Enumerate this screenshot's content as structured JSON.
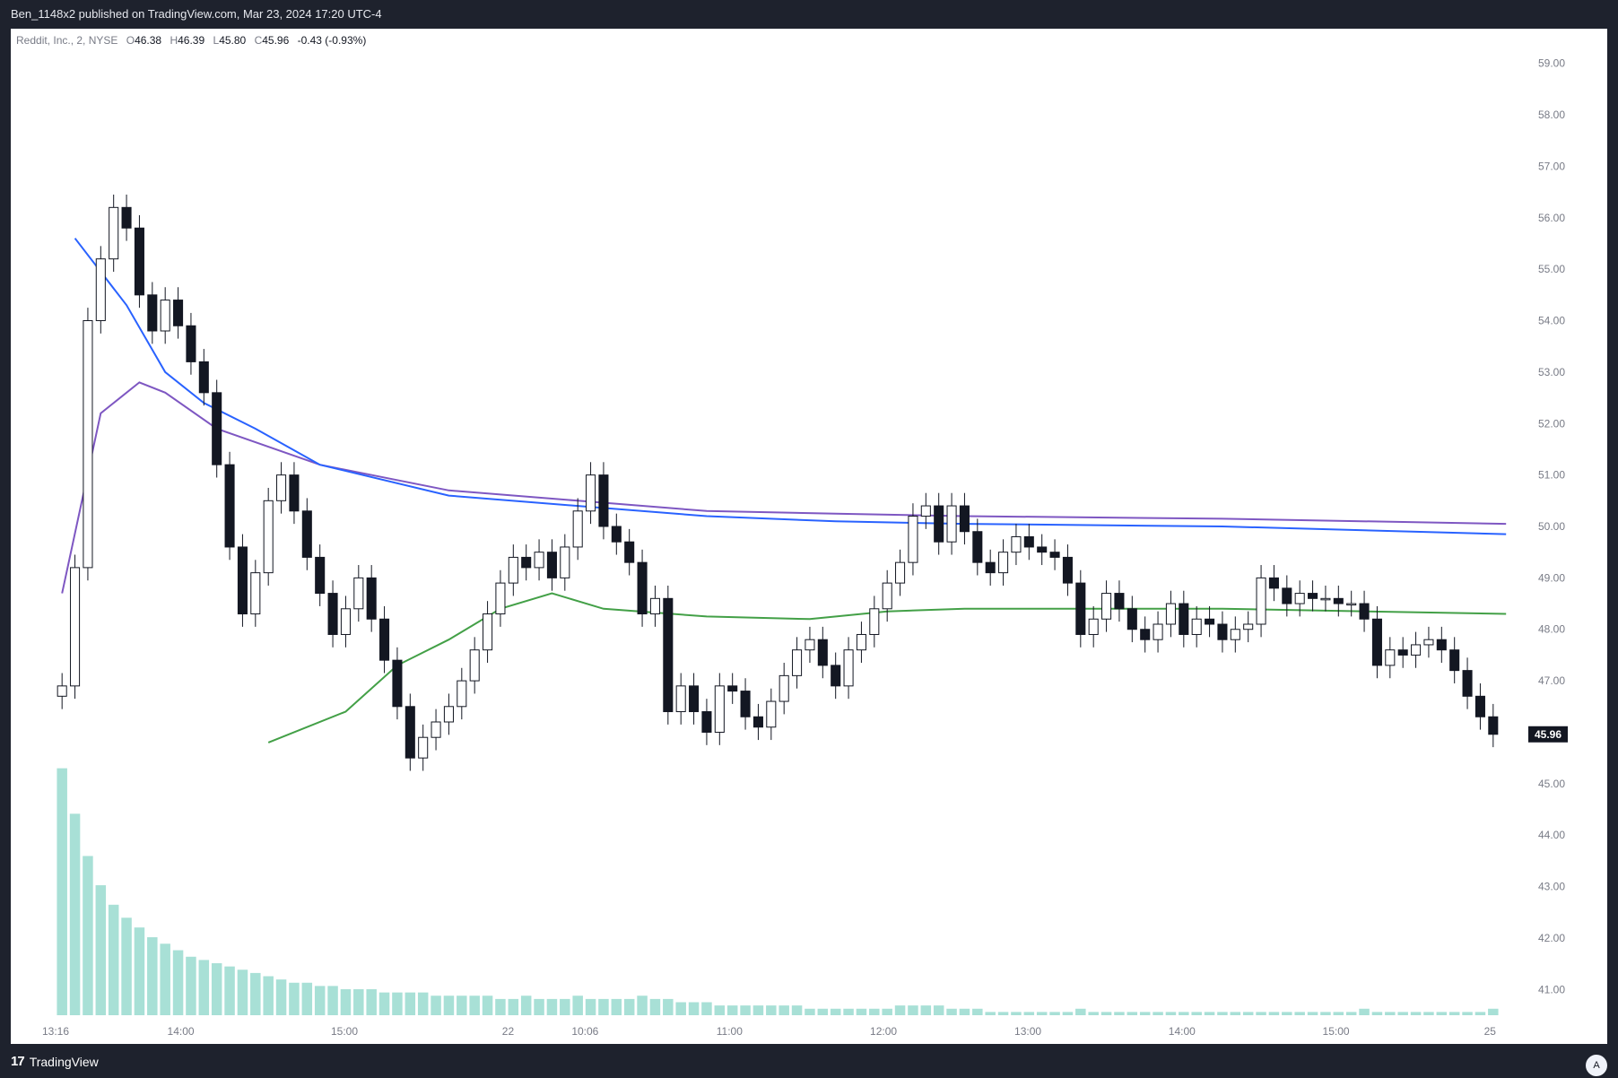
{
  "header": {
    "publish_line": "Ben_1148x2 published on TradingView.com, Mar 23, 2024 17:20 UTC-4"
  },
  "legend": {
    "symbol": "Reddit, Inc., 2, NYSE",
    "open_label": "O",
    "open": "46.38",
    "high_label": "H",
    "high": "46.39",
    "low_label": "L",
    "low": "45.80",
    "close_label": "C",
    "close": "45.96",
    "change": "-0.43 (-0.93%)"
  },
  "footer": {
    "brand": "TradingView",
    "brand_icon": "tradingview-logo-icon",
    "auto_scale_label": "A"
  },
  "colors": {
    "background": "#1e222d",
    "chart_bg": "#ffffff",
    "candle": "#131722",
    "volume": "#a8e0d6",
    "vwap_purple": "#7e57c2",
    "ma_blue": "#2962ff",
    "ma_green": "#43a047",
    "last_price_bg": "#131722"
  },
  "chart_data": {
    "type": "candlestick",
    "ylim": [
      40.5,
      59.5
    ],
    "y_ticks": [
      "59.00",
      "58.00",
      "57.00",
      "56.00",
      "55.00",
      "54.00",
      "53.00",
      "52.00",
      "51.00",
      "50.00",
      "49.00",
      "48.00",
      "47.00",
      "46.00",
      "45.00",
      "44.00",
      "43.00",
      "42.00",
      "41.00"
    ],
    "x_ticks": [
      "13:16",
      "14:00",
      "15:00",
      "22",
      "10:06",
      "11:00",
      "12:00",
      "13:00",
      "14:00",
      "15:00",
      "25"
    ],
    "last_price": "45.96",
    "price_series": [
      46.9,
      49.2,
      54.0,
      55.2,
      56.2,
      55.8,
      54.5,
      53.8,
      54.4,
      53.9,
      53.2,
      52.6,
      51.2,
      49.6,
      48.3,
      49.1,
      50.5,
      51.0,
      50.3,
      49.4,
      48.7,
      47.9,
      48.4,
      49.0,
      48.2,
      47.4,
      46.5,
      45.5,
      45.9,
      46.2,
      46.5,
      47.0,
      47.6,
      48.3,
      48.9,
      49.4,
      49.2,
      49.5,
      49.0,
      49.6,
      50.3,
      51.0,
      50.0,
      49.7,
      49.3,
      48.3,
      48.6,
      46.4,
      46.9,
      46.4,
      46.0,
      46.9,
      46.8,
      46.3,
      46.1,
      46.6,
      47.1,
      47.6,
      47.8,
      47.3,
      46.9,
      47.6,
      47.9,
      48.4,
      48.9,
      49.3,
      50.2,
      50.4,
      49.7,
      50.4,
      49.9,
      49.3,
      49.1,
      49.5,
      49.8,
      49.6,
      49.5,
      49.4,
      48.9,
      47.9,
      48.2,
      48.7,
      48.4,
      48.0,
      47.8,
      48.1,
      48.5,
      47.9,
      48.2,
      48.1,
      47.8,
      48.0,
      48.1,
      49.0,
      48.8,
      48.5,
      48.7,
      48.6,
      48.6,
      48.5,
      48.5,
      48.2,
      47.3,
      47.6,
      47.5,
      47.7,
      47.8,
      47.6,
      47.2,
      46.7,
      46.3,
      45.96
    ],
    "volume_series": [
      7.6,
      6.2,
      4.9,
      4.0,
      3.4,
      3.0,
      2.7,
      2.4,
      2.2,
      2.0,
      1.8,
      1.7,
      1.6,
      1.5,
      1.4,
      1.3,
      1.2,
      1.1,
      1.0,
      1.0,
      0.9,
      0.9,
      0.8,
      0.8,
      0.8,
      0.7,
      0.7,
      0.7,
      0.7,
      0.6,
      0.6,
      0.6,
      0.6,
      0.6,
      0.5,
      0.5,
      0.6,
      0.5,
      0.5,
      0.5,
      0.6,
      0.5,
      0.5,
      0.5,
      0.5,
      0.6,
      0.5,
      0.5,
      0.4,
      0.4,
      0.4,
      0.3,
      0.3,
      0.3,
      0.3,
      0.3,
      0.3,
      0.3,
      0.2,
      0.2,
      0.2,
      0.2,
      0.2,
      0.2,
      0.2,
      0.3,
      0.3,
      0.3,
      0.3,
      0.2,
      0.2,
      0.2,
      0.1,
      0.1,
      0.1,
      0.1,
      0.1,
      0.1,
      0.1,
      0.2,
      0.1,
      0.1,
      0.1,
      0.1,
      0.1,
      0.1,
      0.1,
      0.1,
      0.1,
      0.1,
      0.1,
      0.1,
      0.1,
      0.1,
      0.1,
      0.1,
      0.1,
      0.1,
      0.1,
      0.1,
      0.1,
      0.2,
      0.1,
      0.1,
      0.1,
      0.1,
      0.1,
      0.1,
      0.1,
      0.1,
      0.1,
      0.2
    ],
    "vwap_series": [
      [
        0,
        48.7
      ],
      [
        3,
        52.2
      ],
      [
        6,
        52.8
      ],
      [
        8,
        52.6
      ],
      [
        12,
        51.9
      ],
      [
        20,
        51.2
      ],
      [
        30,
        50.7
      ],
      [
        40,
        50.5
      ],
      [
        50,
        50.3
      ],
      [
        60,
        50.25
      ],
      [
        70,
        50.2
      ],
      [
        90,
        50.15
      ],
      [
        112,
        50.05
      ]
    ],
    "ma_blue_series": [
      [
        1,
        55.6
      ],
      [
        5,
        54.3
      ],
      [
        8,
        53.0
      ],
      [
        11,
        52.4
      ],
      [
        15,
        51.9
      ],
      [
        20,
        51.2
      ],
      [
        30,
        50.6
      ],
      [
        40,
        50.4
      ],
      [
        50,
        50.2
      ],
      [
        60,
        50.1
      ],
      [
        70,
        50.05
      ],
      [
        90,
        50.0
      ],
      [
        112,
        49.85
      ]
    ],
    "ma_green_series": [
      [
        16,
        45.8
      ],
      [
        22,
        46.4
      ],
      [
        26,
        47.3
      ],
      [
        30,
        47.8
      ],
      [
        34,
        48.4
      ],
      [
        38,
        48.7
      ],
      [
        42,
        48.4
      ],
      [
        50,
        48.25
      ],
      [
        58,
        48.2
      ],
      [
        64,
        48.35
      ],
      [
        70,
        48.4
      ],
      [
        90,
        48.4
      ],
      [
        112,
        48.3
      ]
    ]
  }
}
